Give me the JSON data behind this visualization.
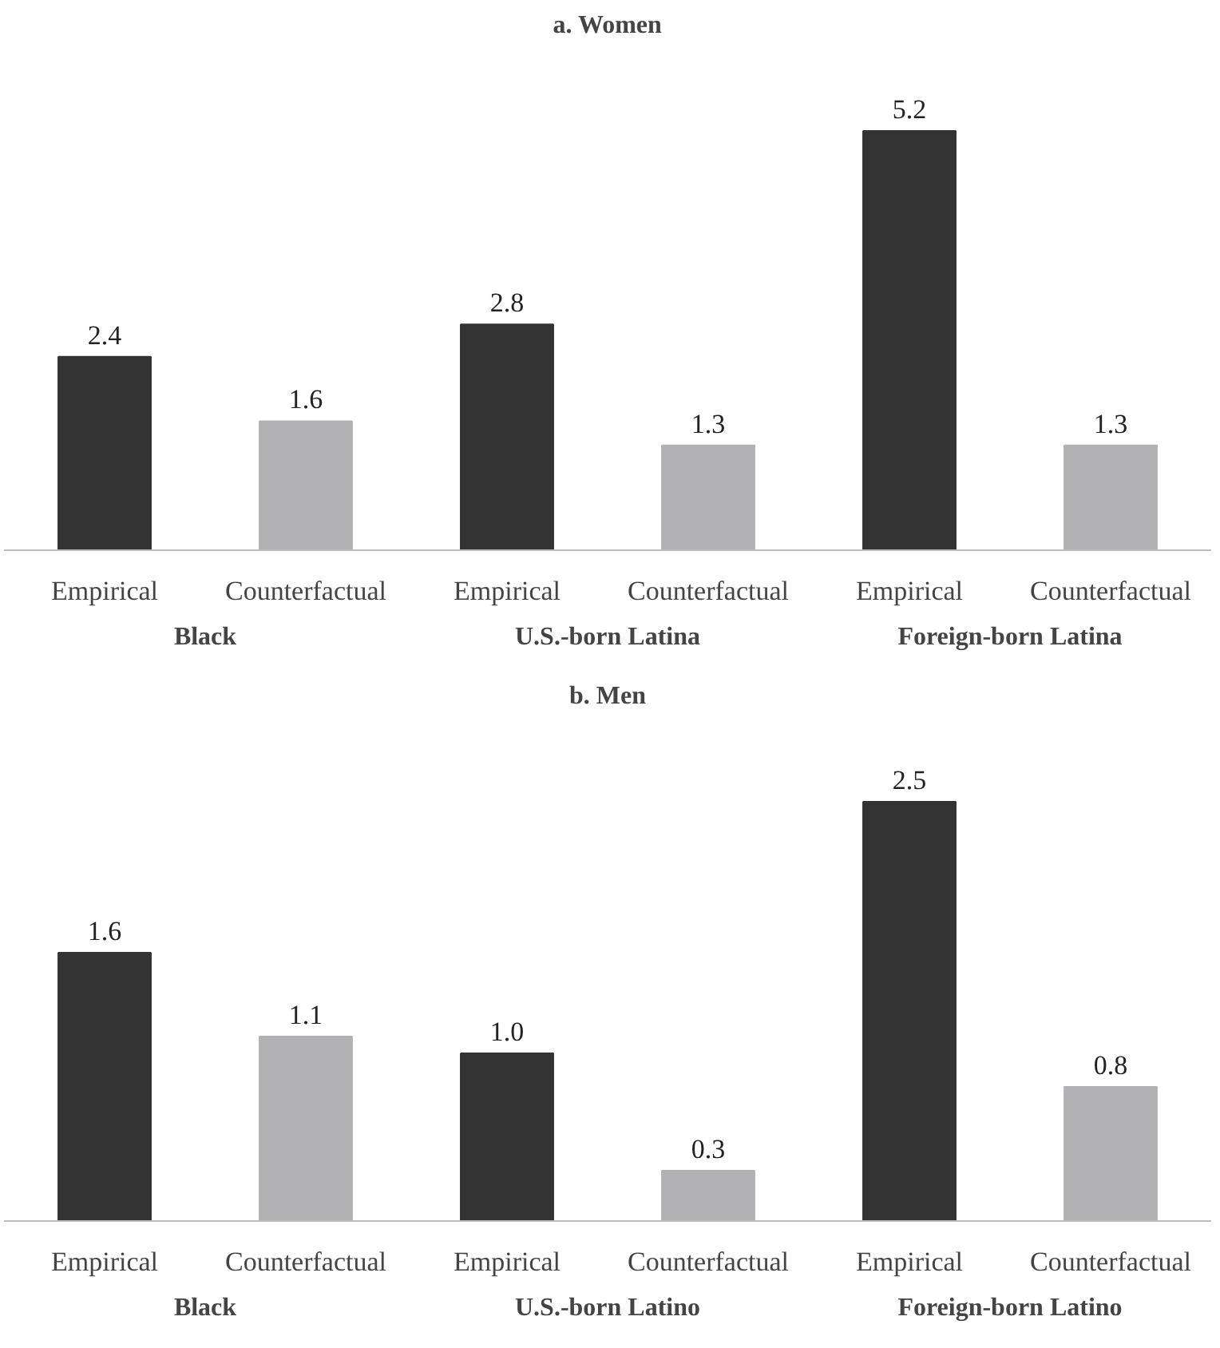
{
  "chart_data": [
    {
      "type": "bar",
      "title": "a. Women",
      "categories": [
        "Empirical",
        "Counterfactual",
        "Empirical",
        "Counterfactual",
        "Empirical",
        "Counterfactual"
      ],
      "values": [
        2.4,
        1.6,
        2.8,
        1.3,
        5.2,
        1.3
      ],
      "colors": [
        "#333333",
        "#b2b2b5",
        "#333333",
        "#b2b2b5",
        "#333333",
        "#b2b2b5"
      ],
      "data_labels": true,
      "annotations": [
        "Black",
        "U.S.-born Latina",
        "Foreign-born Latina"
      ]
    },
    {
      "type": "bar",
      "title": "b. Men",
      "categories": [
        "Empirical",
        "Counterfactual",
        "Empirical",
        "Counterfactual",
        "Empirical",
        "Counterfactual"
      ],
      "values": [
        1.6,
        1.1,
        1.0,
        0.3,
        2.5,
        0.8
      ],
      "colors": [
        "#333333",
        "#b2b2b5",
        "#333333",
        "#b2b2b5",
        "#333333",
        "#b2b2b5"
      ],
      "value_labels": [
        "1.6",
        "1.1",
        "1.0",
        "0.3",
        "2.5",
        "0.8"
      ],
      "annotations": [
        "Black",
        "U.S.-born Latino",
        "Foreign-born Latino"
      ]
    }
  ]
}
